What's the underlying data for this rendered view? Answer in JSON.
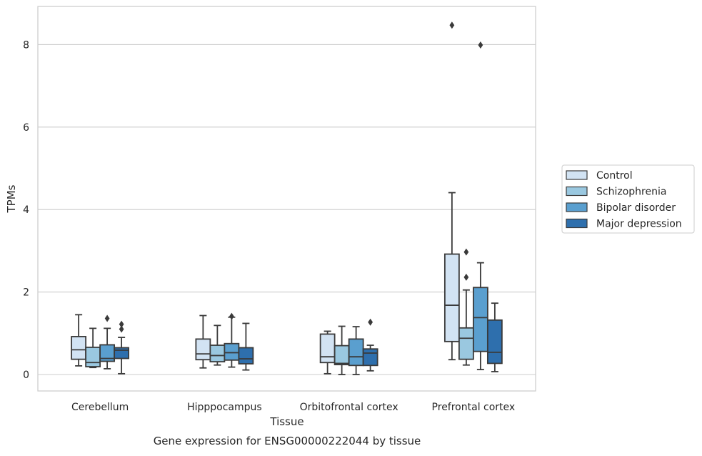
{
  "chart_data": {
    "type": "box",
    "title": "Gene expression for ENSG00000222044 by tissue",
    "xlabel": "Tissue",
    "ylabel": "TPMs",
    "ylim": [
      -0.4,
      8.9
    ],
    "yticks": [
      0,
      2,
      4,
      6,
      8
    ],
    "grid": "horizontal",
    "legend_position": "right",
    "categories": [
      "Cerebellum",
      "Hipppocampus",
      "Orbitofrontal cortex",
      "Prefrontal cortex"
    ],
    "series": [
      {
        "name": "Control",
        "color": "#d2e3f3",
        "boxes": [
          {
            "whislo": 0.21,
            "q1": 0.37,
            "med": 0.6,
            "q3": 0.92,
            "whishi": 1.45,
            "fliers": []
          },
          {
            "whislo": 0.16,
            "q1": 0.36,
            "med": 0.5,
            "q3": 0.86,
            "whishi": 1.43,
            "fliers": []
          },
          {
            "whislo": 0.02,
            "q1": 0.29,
            "med": 0.43,
            "q3": 0.98,
            "whishi": 1.05,
            "fliers": []
          },
          {
            "whislo": 0.36,
            "q1": 0.8,
            "med": 1.68,
            "q3": 2.92,
            "whishi": 4.41,
            "fliers": [
              8.47
            ]
          }
        ]
      },
      {
        "name": "Schizophrenia",
        "color": "#9ac8e0",
        "boxes": [
          {
            "whislo": 0.17,
            "q1": 0.19,
            "med": 0.29,
            "q3": 0.66,
            "whishi": 1.12,
            "fliers": []
          },
          {
            "whislo": 0.23,
            "q1": 0.31,
            "med": 0.46,
            "q3": 0.71,
            "whishi": 1.19,
            "fliers": []
          },
          {
            "whislo": 0.0,
            "q1": 0.24,
            "med": 0.27,
            "q3": 0.7,
            "whishi": 1.17,
            "fliers": []
          },
          {
            "whislo": 0.23,
            "q1": 0.37,
            "med": 0.88,
            "q3": 1.13,
            "whishi": 2.05,
            "fliers": [
              2.36,
              2.97
            ]
          }
        ]
      },
      {
        "name": "Bipolar disorder",
        "color": "#5a9fcf",
        "boxes": [
          {
            "whislo": 0.14,
            "q1": 0.32,
            "med": 0.39,
            "q3": 0.72,
            "whishi": 1.12,
            "fliers": [
              1.36
            ]
          },
          {
            "whislo": 0.18,
            "q1": 0.35,
            "med": 0.53,
            "q3": 0.75,
            "whishi": 1.39,
            "fliers": [
              1.41
            ]
          },
          {
            "whislo": 0.0,
            "q1": 0.22,
            "med": 0.43,
            "q3": 0.86,
            "whishi": 1.16,
            "fliers": []
          },
          {
            "whislo": 0.12,
            "q1": 0.56,
            "med": 1.38,
            "q3": 2.11,
            "whishi": 2.71,
            "fliers": [
              7.99
            ]
          }
        ]
      },
      {
        "name": "Major depression",
        "color": "#2e6fad",
        "boxes": [
          {
            "whislo": 0.02,
            "q1": 0.39,
            "med": 0.59,
            "q3": 0.65,
            "whishi": 0.9,
            "fliers": [
              1.1,
              1.22
            ]
          },
          {
            "whislo": 0.11,
            "q1": 0.26,
            "med": 0.38,
            "q3": 0.65,
            "whishi": 1.24,
            "fliers": []
          },
          {
            "whislo": 0.09,
            "q1": 0.22,
            "med": 0.52,
            "q3": 0.62,
            "whishi": 0.71,
            "fliers": [
              1.27
            ]
          },
          {
            "whislo": 0.07,
            "q1": 0.27,
            "med": 0.54,
            "q3": 1.32,
            "whishi": 1.73,
            "fliers": []
          }
        ]
      }
    ]
  },
  "colors": {
    "grid": "#cccccc",
    "frame": "#cccccc",
    "outline": "#3a3a3a",
    "text": "#262626",
    "background": "#ffffff"
  }
}
